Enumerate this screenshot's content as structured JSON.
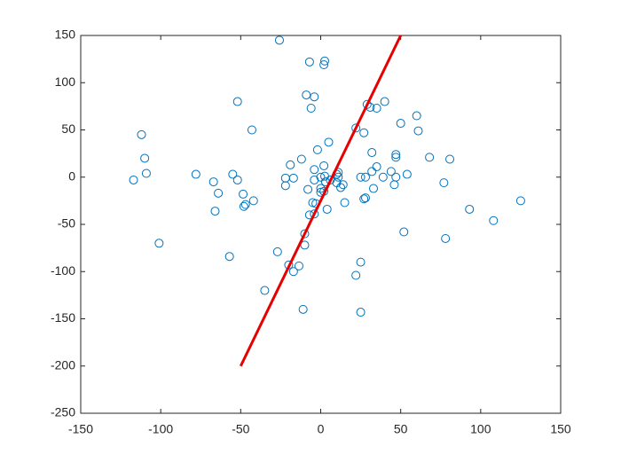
{
  "chart_data": {
    "type": "scatter",
    "xlim": [
      -150,
      150
    ],
    "xticks": [
      -150,
      -100,
      -50,
      0,
      50,
      100,
      150
    ],
    "ylim": [
      -250,
      150
    ],
    "yticks": [
      -250,
      -200,
      -150,
      -100,
      -50,
      0,
      50,
      100,
      150
    ],
    "grid": false,
    "series": [
      {
        "style": "markers",
        "color": "#0072bd",
        "x": [
          -25.8,
          -7,
          2.5,
          2,
          -9,
          -4,
          -6,
          -52,
          -112,
          -43,
          -110,
          -109,
          -117,
          -78,
          -55,
          -52,
          -67,
          -64,
          -66,
          -48.5,
          -47,
          -48,
          -42,
          -101,
          -57,
          -27,
          -35,
          -11,
          -20,
          -17,
          -13.6,
          -10,
          -10,
          -22,
          -22,
          -19,
          -17,
          -12,
          -8,
          -7,
          -5,
          -4,
          -3,
          -4,
          -4,
          -2,
          0,
          0,
          0,
          2,
          2,
          2.5,
          5,
          4,
          3,
          6,
          10,
          11,
          11,
          10,
          12.5,
          14,
          15,
          22,
          27,
          29,
          31,
          35,
          40,
          25,
          28,
          32,
          33,
          32,
          35,
          28,
          27,
          39,
          44,
          47,
          47,
          47,
          46,
          50,
          54,
          60,
          61,
          68,
          80.7,
          77,
          78,
          52,
          93,
          108,
          125,
          25,
          22,
          25
        ],
        "values": [
          145,
          122,
          123,
          119,
          87,
          85,
          73,
          80,
          45,
          50,
          20,
          4,
          -3,
          3,
          3,
          -3,
          -5,
          -17,
          -36,
          -18,
          -29,
          -31,
          -25,
          -70,
          -84,
          -79,
          -120,
          -140,
          -93,
          -100,
          -94,
          -72,
          -60,
          -1,
          -9,
          13,
          -1,
          19,
          -13,
          -40,
          -27,
          -39,
          -28,
          8,
          -3,
          29,
          0,
          -12,
          -16,
          12,
          -15,
          1,
          37,
          -34,
          -5,
          -3,
          3,
          5,
          0,
          -6,
          -11,
          -8,
          -27,
          52,
          47,
          77,
          74,
          73,
          80,
          0,
          0,
          26,
          -12,
          6,
          11,
          -22,
          -23,
          0,
          6,
          21,
          24,
          0,
          -8,
          57,
          3,
          65,
          49,
          21,
          19,
          -6,
          -65,
          -58,
          -34,
          -46,
          -25,
          -90,
          -104,
          -143
        ]
      },
      {
        "style": "line",
        "color": "#e60000",
        "x": [
          -50,
          50
        ],
        "values": [
          -200,
          150
        ]
      }
    ]
  }
}
